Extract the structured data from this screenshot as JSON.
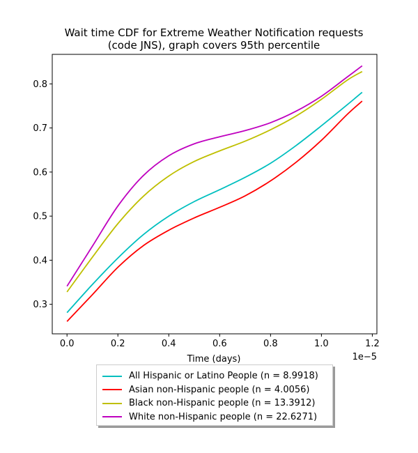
{
  "chart_data": {
    "type": "line",
    "title": "Wait time CDF for Extreme Weather Notification  requests\n(code JNS), graph covers 95th percentile",
    "xlabel": "Time (days)",
    "ylabel": "",
    "x_offset_text": "1e−5",
    "xlim": [
      -0.058,
      1.218
    ],
    "ylim": [
      0.233,
      0.867
    ],
    "x_ticks": [
      0.0,
      0.2,
      0.4,
      0.6,
      0.8,
      1.0,
      1.2
    ],
    "x_tick_labels": [
      "0.0",
      "0.2",
      "0.4",
      "0.6",
      "0.8",
      "1.0",
      "1.2"
    ],
    "y_ticks": [
      0.3,
      0.4,
      0.5,
      0.6,
      0.7,
      0.8
    ],
    "y_tick_labels": [
      "0.3",
      "0.4",
      "0.5",
      "0.6",
      "0.7",
      "0.8"
    ],
    "grid": false,
    "legend_position": "below plot, centered",
    "x": [
      0.0,
      0.1,
      0.2,
      0.3,
      0.4,
      0.5,
      0.6,
      0.7,
      0.8,
      0.9,
      1.0,
      1.1,
      1.16
    ],
    "series": [
      {
        "name": "All Hispanic or Latino People (n = 8.9918)",
        "color": "#00bfbf",
        "values": [
          0.281,
          0.345,
          0.405,
          0.458,
          0.5,
          0.533,
          0.56,
          0.588,
          0.62,
          0.66,
          0.705,
          0.752,
          0.781
        ]
      },
      {
        "name": "Asian non-Hispanic people (n = 4.0056)",
        "color": "#ff0000",
        "values": [
          0.261,
          0.322,
          0.384,
          0.433,
          0.468,
          0.496,
          0.52,
          0.546,
          0.58,
          0.622,
          0.672,
          0.73,
          0.761
        ]
      },
      {
        "name": "Black non-Hispanic people (n = 13.3912)",
        "color": "#bfbf00",
        "values": [
          0.328,
          0.407,
          0.483,
          0.545,
          0.591,
          0.624,
          0.648,
          0.67,
          0.696,
          0.727,
          0.765,
          0.808,
          0.828
        ]
      },
      {
        "name": "White non-Hispanic people (n = 22.6271)",
        "color": "#bf00bf",
        "values": [
          0.341,
          0.432,
          0.523,
          0.592,
          0.637,
          0.664,
          0.68,
          0.694,
          0.712,
          0.738,
          0.772,
          0.815,
          0.841
        ]
      }
    ]
  }
}
